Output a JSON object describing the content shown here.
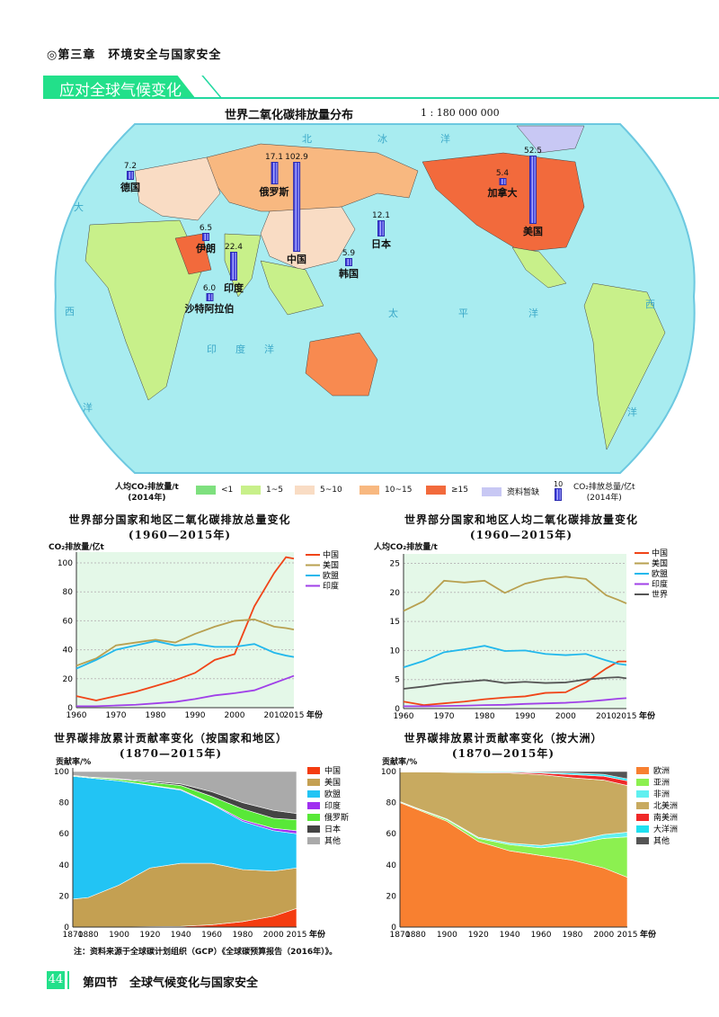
{
  "header": {
    "chapter": "◎第三章　环境安全与国家安全",
    "section_banner": "应对全球气候变化"
  },
  "map": {
    "title": "世界二氧化碳排放量分布",
    "scale": "1 : 180 000 000",
    "oceans": {
      "arctic": [
        "北",
        "冰",
        "洋"
      ],
      "atlantic_w": [
        "大",
        "西"
      ],
      "pacific": [
        "太",
        "平",
        "洋"
      ],
      "indian": [
        "印",
        "度",
        "洋"
      ],
      "atlantic_e": [
        "西",
        "洋"
      ],
      "south": "洋"
    },
    "bars": [
      {
        "name": "德国",
        "value": "7.2"
      },
      {
        "name": "俄罗斯",
        "value": "17.1"
      },
      {
        "name": "中国",
        "value": "102.9"
      },
      {
        "name": "伊朗",
        "value": "6.5"
      },
      {
        "name": "印度",
        "value": "22.4"
      },
      {
        "name": "沙特阿拉伯",
        "value": "6.0"
      },
      {
        "name": "日本",
        "value": "12.1"
      },
      {
        "name": "韩国",
        "value": "5.9"
      },
      {
        "name": "加拿大",
        "value": "5.4"
      },
      {
        "name": "美国",
        "value": "52.5"
      }
    ],
    "legend": {
      "per_capita_title": "人均CO₂排放量/t",
      "per_capita_year": "(2014年)",
      "classes": [
        {
          "label": "<1",
          "color": "#7ee07e"
        },
        {
          "label": "1~5",
          "color": "#c8f08a"
        },
        {
          "label": "5~10",
          "color": "#f9dcc4"
        },
        {
          "label": "10~15",
          "color": "#f8b880"
        },
        {
          "label": "≥15",
          "color": "#f26a3c"
        },
        {
          "label": "资料暂缺",
          "color": "#c8c8f4"
        }
      ],
      "bar_scale": "10",
      "total_title": "CO₂排放总量/亿t",
      "total_year": "(2014年)"
    }
  },
  "chart_data": [
    {
      "type": "line",
      "title": "世界部分国家和地区二氧化碳排放总量变化",
      "subtitle": "(1960—2015年)",
      "ylabel": "CO₂排放量/亿t",
      "xlabel": "年份",
      "ylim": [
        0,
        105
      ],
      "yticks": [
        0,
        20,
        40,
        60,
        80,
        100
      ],
      "xticks": [
        "1960",
        "1970",
        "1980",
        "1990",
        "2000",
        "2010",
        "2015"
      ],
      "legend": "right",
      "grid": true,
      "x": [
        1960,
        1965,
        1970,
        1975,
        1980,
        1985,
        1990,
        1995,
        2000,
        2005,
        2010,
        2013,
        2015
      ],
      "series": [
        {
          "name": "中国",
          "color": "#f04418",
          "values": [
            8,
            5,
            8,
            11,
            15,
            19,
            24,
            33,
            37,
            70,
            93,
            104,
            103
          ]
        },
        {
          "name": "美国",
          "color": "#b8a050",
          "values": [
            29,
            34,
            43,
            45,
            47,
            45,
            51,
            56,
            60,
            61,
            56,
            55,
            54
          ]
        },
        {
          "name": "欧盟",
          "color": "#22b8ec",
          "values": [
            27,
            33,
            40,
            43,
            46,
            43,
            44,
            42,
            42,
            44,
            38,
            36,
            35
          ]
        },
        {
          "name": "印度",
          "color": "#a040e8",
          "values": [
            1,
            1,
            1.5,
            2,
            3,
            4,
            6,
            8.5,
            10,
            12,
            17,
            20,
            22
          ]
        }
      ]
    },
    {
      "type": "line",
      "title": "世界部分国家和地区人均二氧化碳排放量变化",
      "subtitle": "(1960—2015年)",
      "ylabel": "人均CO₂排放量/t",
      "xlabel": "年份",
      "ylim": [
        0,
        26
      ],
      "yticks": [
        0,
        5,
        10,
        15,
        20,
        25
      ],
      "xticks": [
        "1960",
        "1970",
        "1980",
        "1990",
        "2000",
        "2010",
        "2015"
      ],
      "legend": "right",
      "grid": true,
      "x": [
        1960,
        1965,
        1970,
        1975,
        1980,
        1985,
        1990,
        1995,
        2000,
        2005,
        2010,
        2013,
        2015
      ],
      "series": [
        {
          "name": "中国",
          "color": "#f04418",
          "values": [
            1.2,
            0.6,
            0.9,
            1.2,
            1.6,
            1.9,
            2.1,
            2.7,
            2.8,
            4.5,
            6.9,
            8.1,
            8.1
          ]
        },
        {
          "name": "美国",
          "color": "#b8a050",
          "values": [
            16.8,
            18.5,
            22,
            21.7,
            22,
            19.9,
            21.5,
            22.3,
            22.7,
            22.3,
            19.5,
            18.7,
            18.1
          ]
        },
        {
          "name": "欧盟",
          "color": "#22b8ec",
          "values": [
            7.1,
            8.2,
            9.7,
            10.2,
            10.8,
            9.9,
            10,
            9.4,
            9.2,
            9.4,
            8.3,
            7.7,
            7.5
          ]
        },
        {
          "name": "印度",
          "color": "#a040e8",
          "values": [
            0.4,
            0.4,
            0.45,
            0.5,
            0.6,
            0.65,
            0.8,
            0.9,
            1.0,
            1.2,
            1.5,
            1.7,
            1.8
          ]
        },
        {
          "name": "世界",
          "color": "#555555",
          "values": [
            3.4,
            3.8,
            4.3,
            4.6,
            4.9,
            4.4,
            4.6,
            4.4,
            4.5,
            5.0,
            5.3,
            5.4,
            5.2
          ]
        }
      ]
    },
    {
      "type": "area",
      "stacked": true,
      "title": "世界碳排放累计贡献率变化（按国家和地区）",
      "subtitle": "(1870—2015年)",
      "ylabel": "贡献率/%",
      "xlabel": "年份",
      "ylim": [
        0,
        100
      ],
      "yticks": [
        0,
        20,
        40,
        60,
        80,
        100
      ],
      "xticks": [
        "1870",
        "1880",
        "1900",
        "1920",
        "1940",
        "1960",
        "1980",
        "2000",
        "2015"
      ],
      "legend": "right",
      "x": [
        1870,
        1880,
        1900,
        1920,
        1940,
        1960,
        1980,
        2000,
        2015
      ],
      "series": [
        {
          "name": "中国",
          "color": "#f43c10",
          "values": [
            0,
            0,
            0,
            0.3,
            0.5,
            1.5,
            3.5,
            7,
            12
          ]
        },
        {
          "name": "美国",
          "color": "#c4a052",
          "values": [
            18,
            19,
            27,
            37.7,
            40.5,
            39.5,
            33.5,
            29,
            26
          ]
        },
        {
          "name": "欧盟",
          "color": "#22c4f4",
          "values": [
            79,
            77,
            67,
            53,
            47,
            38,
            31,
            26,
            22
          ]
        },
        {
          "name": "印度",
          "color": "#a030f0",
          "values": [
            0,
            0,
            0,
            0.3,
            0.5,
            0.5,
            1,
            1.5,
            2
          ]
        },
        {
          "name": "俄罗斯",
          "color": "#58e838",
          "values": [
            0.5,
            0.5,
            1,
            1.7,
            2.5,
            4.5,
            7,
            6.5,
            7
          ]
        },
        {
          "name": "日本",
          "color": "#444444",
          "values": [
            0,
            0,
            0.3,
            0.8,
            1,
            3,
            4,
            5,
            4
          ]
        },
        {
          "name": "其他",
          "color": "#aaaaaa",
          "values": [
            2.5,
            3.5,
            4.7,
            6.2,
            8,
            13,
            20,
            25,
            27
          ]
        }
      ]
    },
    {
      "type": "area",
      "stacked": true,
      "title": "世界碳排放累计贡献率变化（按大洲）",
      "subtitle": "(1870—2015年)",
      "ylabel": "贡献率/%",
      "xlabel": "年份",
      "ylim": [
        0,
        100
      ],
      "yticks": [
        0,
        20,
        40,
        60,
        80,
        100
      ],
      "xticks": [
        "1870",
        "1880",
        "1900",
        "1920",
        "1940",
        "1960",
        "1980",
        "2000",
        "2015"
      ],
      "legend": "right",
      "x": [
        1870,
        1880,
        1900,
        1920,
        1940,
        1960,
        1980,
        2000,
        2015
      ],
      "series": [
        {
          "name": "欧洲",
          "color": "#f88030",
          "values": [
            80,
            76,
            68,
            55,
            49,
            46,
            43,
            38,
            32
          ]
        },
        {
          "name": "亚洲",
          "color": "#8cf050",
          "values": [
            0.5,
            0.5,
            1,
            2,
            4,
            5,
            10,
            19,
            26
          ]
        },
        {
          "name": "非洲",
          "color": "#60f0f0",
          "values": [
            0.2,
            0.3,
            0.5,
            0.7,
            1,
            1.5,
            2,
            2.5,
            3
          ]
        },
        {
          "name": "北美洲",
          "color": "#c8aa60",
          "values": [
            19,
            23,
            30,
            41.5,
            45,
            45.5,
            41,
            35,
            30
          ]
        },
        {
          "name": "南美洲",
          "color": "#f02828",
          "values": [
            0,
            0,
            0.2,
            0.3,
            0.5,
            1,
            2,
            2.5,
            3
          ]
        },
        {
          "name": "大洋洲",
          "color": "#20e0f0",
          "values": [
            0.3,
            0.2,
            0.3,
            0.5,
            0.5,
            0.5,
            1,
            1.2,
            1.3
          ]
        },
        {
          "name": "其他",
          "color": "#555555",
          "values": [
            0,
            0,
            0,
            0,
            0,
            0.5,
            1,
            1.8,
            4.7
          ]
        }
      ]
    }
  ],
  "note": "注：资料来源于全球碳计划组织（GCP）《全球碳预算报告（2016年）》。",
  "footer": {
    "page_number": "44",
    "section_title": "第四节　全球气候变化与国家安全"
  }
}
